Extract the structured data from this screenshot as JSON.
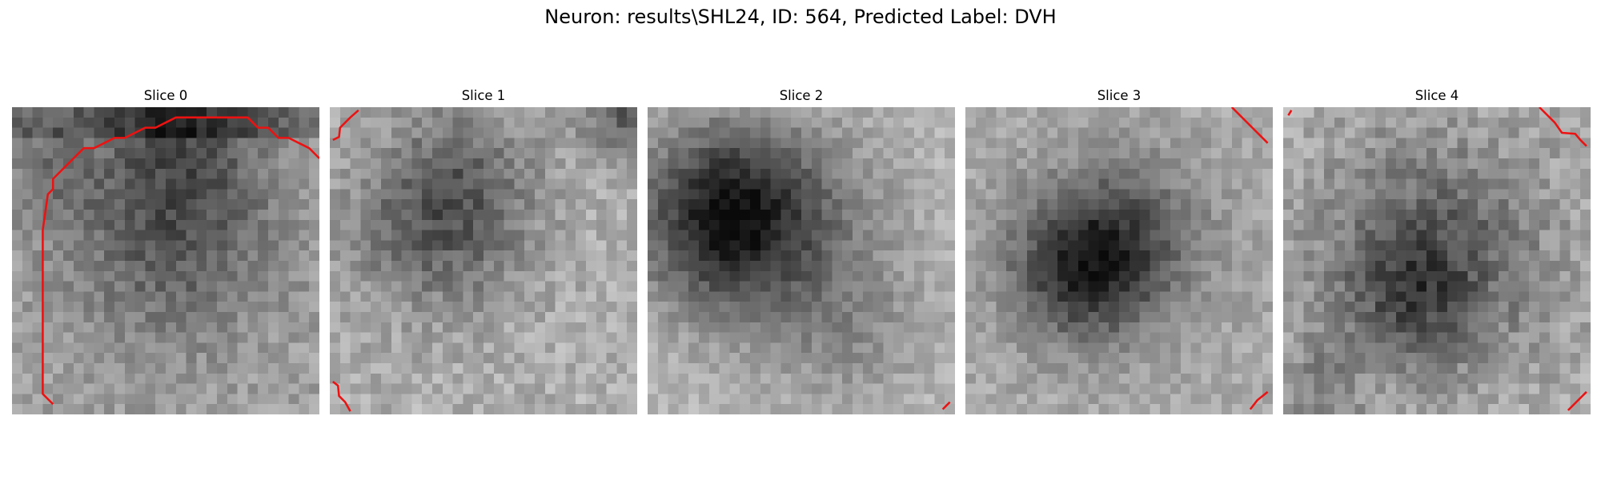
{
  "figure": {
    "title": "Neuron: results\\SHL24, ID: 564, Predicted Label: DVH",
    "contour_color": "#ee1111"
  },
  "slices": [
    {
      "title": "Slice 0",
      "contours": [
        [
          [
            4.0,
            29.0
          ],
          [
            3.0,
            28.0
          ],
          [
            3.0,
            24.0
          ],
          [
            3.0,
            20.0
          ],
          [
            3.0,
            16.0
          ],
          [
            3.0,
            12.0
          ],
          [
            3.5,
            8.5
          ],
          [
            4.0,
            8.0
          ],
          [
            4.0,
            7.0
          ],
          [
            5.0,
            6.0
          ],
          [
            6.0,
            5.0
          ],
          [
            7.0,
            4.0
          ],
          [
            8.0,
            4.0
          ],
          [
            9.0,
            3.5
          ],
          [
            10.0,
            3.0
          ],
          [
            11.0,
            3.0
          ],
          [
            12.0,
            2.5
          ],
          [
            13.0,
            2.0
          ],
          [
            14.0,
            2.0
          ],
          [
            15.0,
            1.5
          ],
          [
            16.0,
            1.0
          ],
          [
            17.0,
            1.0
          ],
          [
            18.0,
            1.0
          ],
          [
            19.0,
            1.0
          ],
          [
            20.0,
            1.0
          ],
          [
            21.0,
            1.0
          ],
          [
            22.0,
            1.0
          ],
          [
            23.0,
            1.0
          ],
          [
            24.0,
            2.0
          ],
          [
            25.0,
            2.0
          ],
          [
            26.0,
            3.0
          ],
          [
            27.0,
            3.0
          ],
          [
            28.0,
            3.5
          ],
          [
            29.0,
            4.0
          ],
          [
            30.0,
            5.0
          ]
        ]
      ]
    },
    {
      "title": "Slice 1",
      "contours": [
        [
          [
            0.3,
            3.2
          ],
          [
            0.9,
            2.9
          ],
          [
            1.0,
            2.0
          ],
          [
            2.0,
            1.0
          ],
          [
            2.8,
            0.3
          ]
        ],
        [
          [
            0.3,
            26.8
          ],
          [
            0.8,
            27.2
          ],
          [
            0.9,
            28.2
          ],
          [
            1.5,
            28.8
          ],
          [
            2.0,
            29.7
          ]
        ]
      ]
    },
    {
      "title": "Slice 2",
      "contours": [
        [
          [
            29.5,
            28.8
          ],
          [
            28.8,
            29.5
          ]
        ]
      ]
    },
    {
      "title": "Slice 3",
      "contours": [
        [
          [
            26.0,
            0.0
          ],
          [
            28.0,
            2.0
          ],
          [
            29.5,
            3.5
          ]
        ],
        [
          [
            29.5,
            27.8
          ],
          [
            28.5,
            28.6
          ],
          [
            27.8,
            29.5
          ]
        ]
      ]
    },
    {
      "title": "Slice 4",
      "contours": [
        [
          [
            0.5,
            0.8
          ],
          [
            0.8,
            0.3
          ]
        ],
        [
          [
            25.0,
            0.0
          ],
          [
            26.5,
            1.5
          ],
          [
            27.2,
            2.5
          ],
          [
            28.5,
            2.6
          ],
          [
            29.0,
            3.2
          ],
          [
            29.6,
            3.8
          ]
        ],
        [
          [
            29.6,
            27.8
          ],
          [
            28.6,
            28.8
          ],
          [
            27.8,
            29.6
          ]
        ]
      ]
    }
  ]
}
